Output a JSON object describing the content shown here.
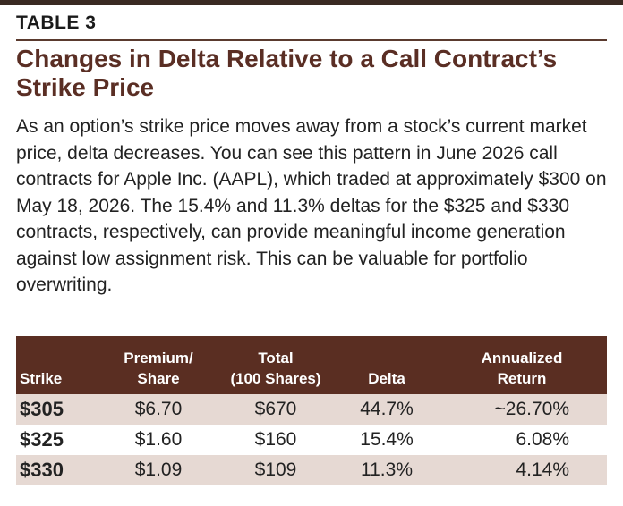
{
  "label": "TABLE 3",
  "title": "Changes in Delta Relative to a Call Contract’s Strike Price",
  "description": "As an option’s strike price moves away from a stock’s current market price, delta decreases. You can see this pattern in June 2026 call contracts for Apple Inc. (AAPL), which traded at approximately $300 on May 18, 2026. The 15.4% and 11.3% deltas for the $325 and $330 contracts, respectively, can provide meaningful income generation against low assignment risk. This can be valuable for portfolio overwriting.",
  "table": {
    "headers": {
      "strike": "Strike",
      "premium_line1": "Premium/",
      "premium_line2": "Share",
      "total_line1": "Total",
      "total_line2": "(100 Shares)",
      "delta": "Delta",
      "return_line1": "Annualized",
      "return_line2": "Return"
    },
    "rows": [
      {
        "strike": "$305",
        "premium": "$6.70",
        "total": "$670",
        "delta": "44.7%",
        "return": "~26.70%"
      },
      {
        "strike": "$325",
        "premium": "$1.60",
        "total": "$160",
        "delta": "15.4%",
        "return": "6.08%"
      },
      {
        "strike": "$330",
        "premium": "$1.09",
        "total": "$109",
        "delta": "11.3%",
        "return": "4.14%"
      }
    ]
  },
  "colors": {
    "header_bg": "#5a2e22",
    "title_color": "#5a2e24",
    "shaded_row": "#e6d9d3"
  }
}
